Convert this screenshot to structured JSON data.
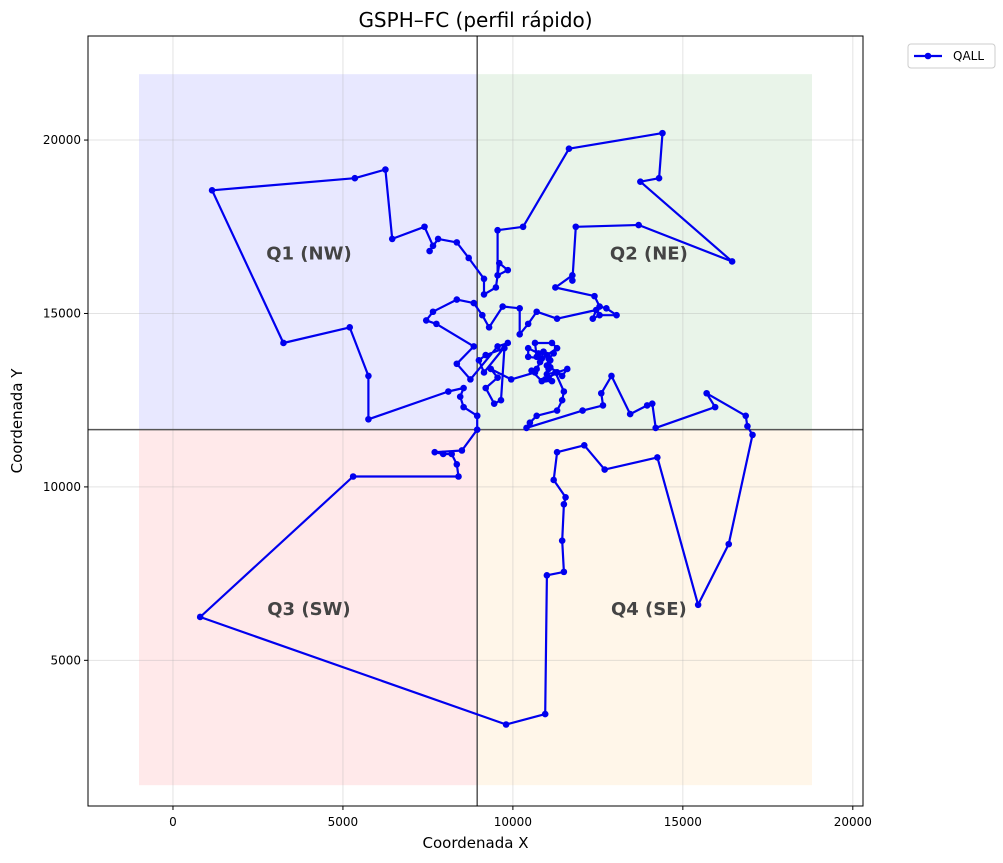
{
  "chart_data": {
    "type": "line",
    "title": "GSPH–FC (perfil rápido)",
    "xlabel": "Coordenada X",
    "ylabel": "Coordenada Y",
    "xlim": [
      -2500,
      20300
    ],
    "ylim": [
      800,
      23000
    ],
    "xticks": [
      0,
      5000,
      10000,
      15000,
      20000
    ],
    "yticks": [
      5000,
      10000,
      15000,
      20000
    ],
    "grid": true,
    "legend_position": "outside-top-right",
    "divider": {
      "x": 8950,
      "y": 11650
    },
    "quadrants": [
      {
        "label": "Q1 (NW)",
        "x0": -1000,
        "x1": 8950,
        "y0": 11650,
        "y1": 21900,
        "color": "#e8e8ff",
        "label_at": [
          4000,
          16700
        ]
      },
      {
        "label": "Q2 (NE)",
        "x0": 8950,
        "x1": 18800,
        "y0": 11650,
        "y1": 21900,
        "color": "#e9f4e9",
        "label_at": [
          14000,
          16700
        ]
      },
      {
        "label": "Q3 (SW)",
        "x0": -1000,
        "x1": 8950,
        "y0": 1400,
        "y1": 11650,
        "color": "#ffe9ea",
        "label_at": [
          4000,
          6450
        ]
      },
      {
        "label": "Q4 (SE)",
        "x0": 8950,
        "x1": 18800,
        "y0": 1400,
        "y1": 11650,
        "color": "#fff6e9",
        "label_at": [
          14000,
          6450
        ]
      }
    ],
    "series": [
      {
        "name": "QALL",
        "color": "#0000ee",
        "points": [
          [
            8950,
            12050
          ],
          [
            8550,
            12300
          ],
          [
            8450,
            12600
          ],
          [
            8550,
            12850
          ],
          [
            8100,
            12750
          ],
          [
            5750,
            11950
          ],
          [
            5750,
            13200
          ],
          [
            5200,
            14600
          ],
          [
            3250,
            14150
          ],
          [
            1150,
            18550
          ],
          [
            5350,
            18900
          ],
          [
            6250,
            19150
          ],
          [
            6450,
            17150
          ],
          [
            7400,
            17500
          ],
          [
            7650,
            16950
          ],
          [
            7550,
            16800
          ],
          [
            7800,
            17150
          ],
          [
            8350,
            17050
          ],
          [
            8700,
            16600
          ],
          [
            9150,
            16000
          ],
          [
            9150,
            15550
          ],
          [
            9500,
            15750
          ],
          [
            9600,
            16450
          ],
          [
            9850,
            16250
          ],
          [
            9550,
            16100
          ],
          [
            9550,
            17400
          ],
          [
            10300,
            17500
          ],
          [
            11650,
            19750
          ],
          [
            14400,
            20200
          ],
          [
            14300,
            18900
          ],
          [
            13750,
            18800
          ],
          [
            16450,
            16500
          ],
          [
            13700,
            17550
          ],
          [
            11850,
            17500
          ],
          [
            11750,
            15950
          ],
          [
            11750,
            16100
          ],
          [
            11250,
            15750
          ],
          [
            12400,
            15500
          ],
          [
            12550,
            15200
          ],
          [
            12750,
            15150
          ],
          [
            13050,
            14950
          ],
          [
            12550,
            14950
          ],
          [
            12350,
            14850
          ],
          [
            12450,
            15100
          ],
          [
            11300,
            14850
          ],
          [
            10700,
            15050
          ],
          [
            10450,
            14700
          ],
          [
            10200,
            14400
          ],
          [
            10200,
            15150
          ],
          [
            9700,
            15200
          ],
          [
            9300,
            14600
          ],
          [
            9100,
            14950
          ],
          [
            8850,
            15300
          ],
          [
            8350,
            15400
          ],
          [
            7650,
            15050
          ],
          [
            7450,
            14800
          ],
          [
            7750,
            14700
          ],
          [
            8850,
            14050
          ],
          [
            8350,
            13550
          ],
          [
            8750,
            13100
          ],
          [
            9550,
            14050
          ],
          [
            9850,
            14150
          ],
          [
            9150,
            13300
          ],
          [
            9000,
            13650
          ],
          [
            9200,
            13800
          ],
          [
            9750,
            14000
          ],
          [
            9650,
            12500
          ],
          [
            9450,
            12400
          ],
          [
            9200,
            12850
          ],
          [
            9550,
            13150
          ],
          [
            9350,
            13400
          ],
          [
            9950,
            13100
          ],
          [
            10650,
            13300
          ],
          [
            10800,
            13600
          ],
          [
            10900,
            13900
          ],
          [
            10700,
            13750
          ],
          [
            10650,
            14150
          ],
          [
            11150,
            14150
          ],
          [
            11300,
            14000
          ],
          [
            11000,
            13800
          ],
          [
            11100,
            13650
          ],
          [
            11100,
            13450
          ],
          [
            11300,
            13300
          ],
          [
            11450,
            13200
          ],
          [
            11600,
            13400
          ],
          [
            11300,
            13300
          ],
          [
            11050,
            13150
          ],
          [
            10950,
            13100
          ],
          [
            11050,
            13400
          ],
          [
            11000,
            13500
          ],
          [
            11050,
            13700
          ],
          [
            11200,
            13850
          ],
          [
            10750,
            13850
          ],
          [
            10450,
            14000
          ],
          [
            10450,
            13750
          ],
          [
            10850,
            13700
          ],
          [
            10700,
            13400
          ],
          [
            10550,
            13350
          ],
          [
            10850,
            13050
          ],
          [
            11150,
            13050
          ],
          [
            11000,
            13250
          ],
          [
            11250,
            13300
          ],
          [
            11500,
            12750
          ],
          [
            11450,
            12500
          ],
          [
            11300,
            12200
          ],
          [
            10700,
            12050
          ],
          [
            10500,
            11850
          ],
          [
            10400,
            11700
          ],
          [
            12050,
            12200
          ],
          [
            12650,
            12350
          ],
          [
            12600,
            12700
          ],
          [
            12900,
            13200
          ],
          [
            13450,
            12100
          ],
          [
            13950,
            12350
          ],
          [
            14100,
            12400
          ],
          [
            14200,
            11700
          ],
          [
            15950,
            12300
          ],
          [
            15700,
            12700
          ],
          [
            16850,
            12050
          ],
          [
            16900,
            11750
          ],
          [
            17050,
            11500
          ],
          [
            16350,
            8350
          ],
          [
            15450,
            6600
          ],
          [
            14250,
            10850
          ],
          [
            12700,
            10500
          ],
          [
            12100,
            11200
          ],
          [
            11300,
            11000
          ],
          [
            11200,
            10200
          ],
          [
            11550,
            9700
          ],
          [
            11500,
            9500
          ],
          [
            11450,
            8450
          ],
          [
            11500,
            7550
          ],
          [
            11000,
            7450
          ],
          [
            10950,
            3450
          ],
          [
            9800,
            3150
          ],
          [
            800,
            6250
          ],
          [
            5300,
            10300
          ],
          [
            8400,
            10300
          ],
          [
            8350,
            10650
          ],
          [
            8200,
            10950
          ],
          [
            7950,
            10950
          ],
          [
            7700,
            11000
          ],
          [
            8500,
            11050
          ],
          [
            8950,
            11650
          ],
          [
            8950,
            12050
          ]
        ]
      }
    ]
  }
}
